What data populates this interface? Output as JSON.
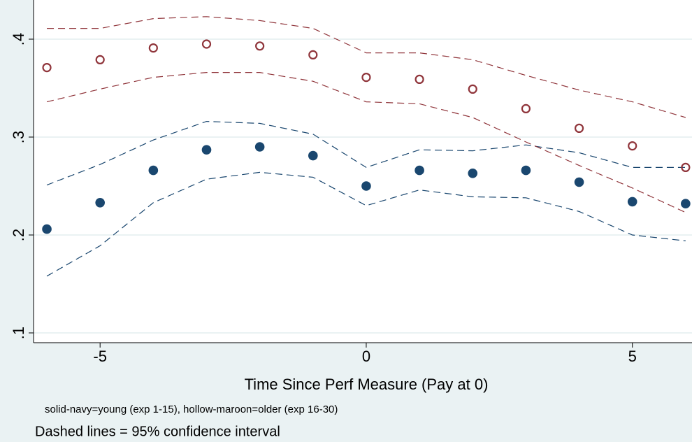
{
  "chart_data": {
    "type": "scatter",
    "x": [
      -6,
      -5,
      -4,
      -3,
      -2,
      -1,
      0,
      1,
      2,
      3,
      4,
      5,
      6
    ],
    "series": [
      {
        "color": "#1a476f",
        "marker": "solid",
        "values": [
          0.206,
          0.233,
          0.266,
          0.287,
          0.29,
          0.281,
          0.25,
          0.266,
          0.263,
          0.266,
          0.254,
          0.234,
          0.232
        ],
        "ci_upper": [
          0.251,
          0.272,
          0.297,
          0.316,
          0.314,
          0.303,
          0.269,
          0.287,
          0.286,
          0.292,
          0.284,
          0.269,
          0.269
        ],
        "ci_lower": [
          0.158,
          0.189,
          0.233,
          0.257,
          0.264,
          0.259,
          0.23,
          0.246,
          0.239,
          0.238,
          0.224,
          0.2,
          0.194
        ]
      },
      {
        "color": "#90353b",
        "marker": "hollow",
        "values": [
          0.371,
          0.379,
          0.391,
          0.395,
          0.393,
          0.384,
          0.361,
          0.359,
          0.349,
          0.329,
          0.309,
          0.291,
          0.269
        ],
        "ci_upper": [
          0.411,
          0.411,
          0.421,
          0.423,
          0.419,
          0.411,
          0.386,
          0.386,
          0.379,
          0.363,
          0.348,
          0.336,
          0.32
        ],
        "ci_lower": [
          0.336,
          0.349,
          0.361,
          0.366,
          0.366,
          0.357,
          0.336,
          0.334,
          0.32,
          0.295,
          0.271,
          0.248,
          0.223
        ]
      }
    ],
    "xlim": [
      -6.25,
      6.12
    ],
    "xticks": [
      -5,
      0,
      5
    ],
    "ylim": [
      0.09,
      0.44
    ],
    "yticks": [
      {
        "value": 0.1,
        "label": ".1"
      },
      {
        "value": 0.2,
        "label": ".2"
      },
      {
        "value": 0.3,
        "label": ".3"
      },
      {
        "value": 0.4,
        "label": ".4"
      }
    ],
    "grid": true,
    "x_label": "Time Since Perf Measure (Pay at 0)",
    "notes": [
      "solid-navy=young (exp 1-15), hollow-maroon=older (exp 16-30)",
      "Dashed lines = 95% confidence interval"
    ]
  }
}
